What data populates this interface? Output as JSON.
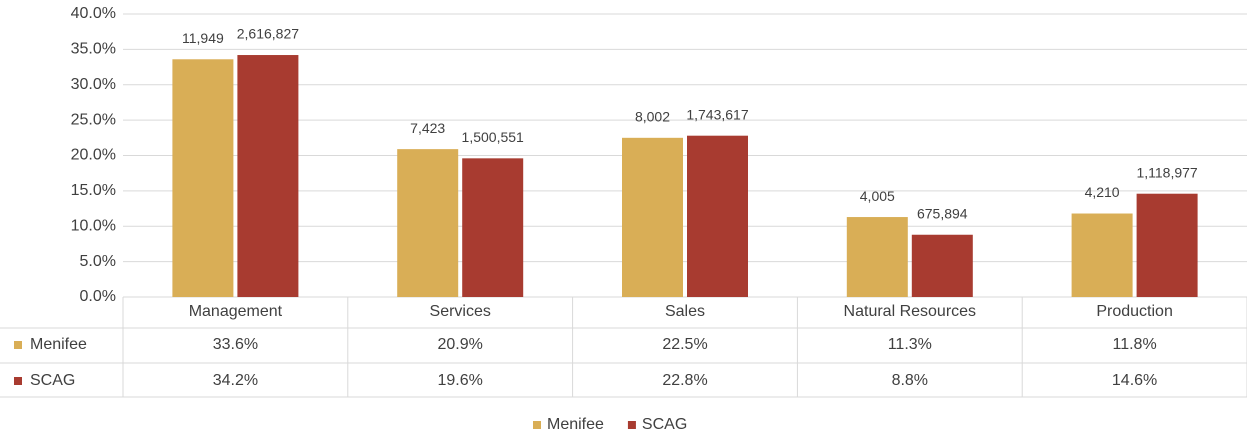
{
  "chart_data": {
    "type": "bar",
    "categories": [
      "Management",
      "Services",
      "Sales",
      "Natural Resources",
      "Production"
    ],
    "series": [
      {
        "name": "Menifee",
        "color": "#d9ae56",
        "values": [
          33.6,
          20.9,
          22.5,
          11.3,
          11.8
        ],
        "value_labels": [
          "33.6%",
          "20.9%",
          "22.5%",
          "11.3%",
          "11.8%"
        ],
        "data_labels": [
          "11,949",
          "7,423",
          "8,002",
          "4,005",
          "4,210"
        ]
      },
      {
        "name": "SCAG",
        "color": "#a83b30",
        "values": [
          34.2,
          19.6,
          22.8,
          8.8,
          14.6
        ],
        "value_labels": [
          "34.2%",
          "19.6%",
          "22.8%",
          "8.8%",
          "14.6%"
        ],
        "data_labels": [
          "2,616,827",
          "1,500,551",
          "1,743,617",
          "675,894",
          "1,118,977"
        ]
      }
    ],
    "ylim": [
      0,
      40
    ],
    "yticks": [
      {
        "value": 0,
        "label": "0.0%"
      },
      {
        "value": 5,
        "label": "5.0%"
      },
      {
        "value": 10,
        "label": "10.0%"
      },
      {
        "value": 15,
        "label": "15.0%"
      },
      {
        "value": 20,
        "label": "20.0%"
      },
      {
        "value": 25,
        "label": "25.0%"
      },
      {
        "value": 30,
        "label": "30.0%"
      },
      {
        "value": 35,
        "label": "35.0%"
      },
      {
        "value": 40,
        "label": "40.0%"
      }
    ],
    "grid": true,
    "legend": "bottom"
  }
}
